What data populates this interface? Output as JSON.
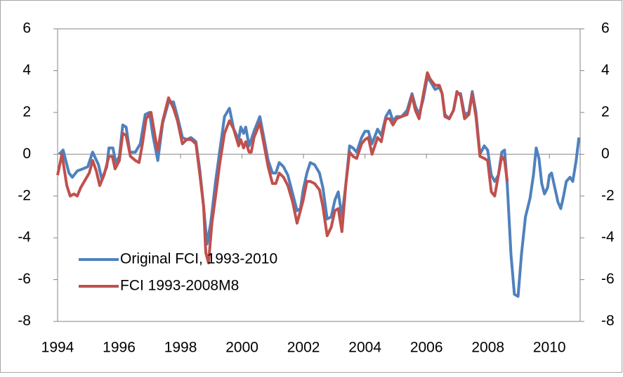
{
  "chart_data": {
    "type": "line",
    "xlim": [
      1994,
      2011
    ],
    "xticks": [
      1994,
      1996,
      1998,
      2000,
      2002,
      2004,
      2006,
      2008,
      2010
    ],
    "ylim": [
      -8,
      6
    ],
    "yticks": [
      -8,
      -6,
      -4,
      -2,
      0,
      2,
      4,
      6
    ],
    "y2lim": [
      -8,
      6
    ],
    "y2ticks": [
      -8,
      -6,
      -4,
      -2,
      0,
      2,
      4,
      6
    ],
    "legend": "lower left",
    "series": [
      {
        "name": "Original FCI, 1993-2010",
        "color": "#4f81bd",
        "x": [
          1994.05,
          1994.18,
          1994.37,
          1994.48,
          1994.64,
          1994.82,
          1994.98,
          1995.14,
          1995.33,
          1995.44,
          1995.6,
          1995.67,
          1995.8,
          1995.89,
          1996.01,
          1996.12,
          1996.23,
          1996.35,
          1996.53,
          1996.69,
          1996.85,
          1996.99,
          1997.1,
          1997.26,
          1997.42,
          1997.61,
          1997.77,
          1997.9,
          1998.06,
          1998.2,
          1998.34,
          1998.5,
          1998.63,
          1998.75,
          1998.86,
          1998.98,
          1999.14,
          1999.27,
          1999.43,
          1999.59,
          1999.73,
          1999.89,
          1999.96,
          2000.05,
          2000.12,
          2000.23,
          2000.39,
          2000.58,
          2000.71,
          2000.85,
          2000.99,
          2001.1,
          2001.21,
          2001.35,
          2001.49,
          2001.65,
          2001.79,
          2001.9,
          2001.99,
          2002.11,
          2002.22,
          2002.36,
          2002.52,
          2002.63,
          2002.77,
          2002.9,
          2003.02,
          2003.13,
          2003.25,
          2003.38,
          2003.5,
          2003.61,
          2003.73,
          2003.89,
          2004.0,
          2004.11,
          2004.23,
          2004.41,
          2004.53,
          2004.68,
          2004.8,
          2004.91,
          2005.03,
          2005.19,
          2005.37,
          2005.53,
          2005.64,
          2005.76,
          2005.89,
          2006.03,
          2006.12,
          2006.28,
          2006.42,
          2006.51,
          2006.6,
          2006.74,
          2006.88,
          2006.99,
          2007.11,
          2007.24,
          2007.38,
          2007.49,
          2007.61,
          2007.74,
          2007.88,
          2007.99,
          2008.11,
          2008.22,
          2008.34,
          2008.45,
          2008.54,
          2008.63,
          2008.75,
          2008.86,
          2008.98,
          2009.09,
          2009.22,
          2009.37,
          2009.48,
          2009.57,
          2009.66,
          2009.75,
          2009.84,
          2009.94,
          2010.0,
          2010.07,
          2010.16,
          2010.28,
          2010.37,
          2010.46,
          2010.55,
          2010.67,
          2010.76,
          2010.87,
          2010.96
        ],
        "values": [
          0.0,
          0.2,
          -0.9,
          -1.1,
          -0.8,
          -0.7,
          -0.6,
          0.1,
          -0.5,
          -1.2,
          -0.6,
          0.3,
          0.3,
          -0.4,
          -0.1,
          1.4,
          1.3,
          0.1,
          0.1,
          0.5,
          1.9,
          2.0,
          0.9,
          -0.3,
          1.5,
          2.5,
          2.5,
          1.8,
          0.8,
          0.7,
          0.8,
          0.6,
          -0.8,
          -2.5,
          -4.3,
          -3.3,
          -1.3,
          0.1,
          1.8,
          2.2,
          1.2,
          0.7,
          1.3,
          1.0,
          1.3,
          0.4,
          1.1,
          1.8,
          0.8,
          -0.3,
          -0.9,
          -0.9,
          -0.4,
          -0.6,
          -1.0,
          -1.9,
          -2.7,
          -2.6,
          -1.7,
          -0.9,
          -0.4,
          -0.5,
          -0.9,
          -1.6,
          -3.1,
          -3.0,
          -2.2,
          -1.8,
          -3.0,
          -1.4,
          0.4,
          0.3,
          0.1,
          0.8,
          1.1,
          1.1,
          0.5,
          1.2,
          0.9,
          1.8,
          2.1,
          1.6,
          1.8,
          1.8,
          2.1,
          2.9,
          2.3,
          1.9,
          2.6,
          3.7,
          3.5,
          3.1,
          3.2,
          2.9,
          1.9,
          1.7,
          2.1,
          2.9,
          2.9,
          1.9,
          2.0,
          3.0,
          2.0,
          0.0,
          0.4,
          0.2,
          -1.0,
          -1.3,
          -1.0,
          0.1,
          0.2,
          -1.5,
          -4.8,
          -6.7,
          -6.8,
          -4.8,
          -3.0,
          -2.1,
          -1.0,
          0.3,
          -0.2,
          -1.4,
          -1.9,
          -1.6,
          -1.0,
          -0.9,
          -1.5,
          -2.3,
          -2.6,
          -2.0,
          -1.3,
          -1.1,
          -1.3,
          -0.3,
          0.8
        ]
      },
      {
        "name": "FCI 1993-2008M8",
        "color": "#c0504d",
        "x": [
          1994.0,
          1994.14,
          1994.3,
          1994.41,
          1994.53,
          1994.64,
          1994.75,
          1994.91,
          1995.03,
          1995.14,
          1995.26,
          1995.37,
          1995.51,
          1995.67,
          1995.78,
          1995.87,
          1996.01,
          1996.12,
          1996.23,
          1996.37,
          1996.53,
          1996.65,
          1996.76,
          1996.88,
          1997.04,
          1997.2,
          1997.26,
          1997.42,
          1997.61,
          1997.77,
          1997.9,
          1998.06,
          1998.2,
          1998.34,
          1998.5,
          1998.63,
          1998.75,
          1998.82,
          1998.91,
          1999.02,
          1999.14,
          1999.27,
          1999.43,
          1999.59,
          1999.73,
          1999.89,
          1999.96,
          2000.05,
          2000.12,
          2000.23,
          2000.3,
          2000.39,
          2000.58,
          2000.71,
          2000.85,
          2000.99,
          2001.1,
          2001.21,
          2001.35,
          2001.49,
          2001.65,
          2001.79,
          2001.9,
          2001.99,
          2002.11,
          2002.22,
          2002.36,
          2002.52,
          2002.63,
          2002.77,
          2002.9,
          2003.02,
          2003.13,
          2003.25,
          2003.38,
          2003.5,
          2003.61,
          2003.73,
          2003.89,
          2004.0,
          2004.11,
          2004.23,
          2004.41,
          2004.53,
          2004.68,
          2004.8,
          2004.91,
          2005.03,
          2005.19,
          2005.37,
          2005.53,
          2005.64,
          2005.76,
          2005.89,
          2006.03,
          2006.12,
          2006.28,
          2006.42,
          2006.51,
          2006.6,
          2006.74,
          2006.88,
          2006.99,
          2007.11,
          2007.24,
          2007.38,
          2007.49,
          2007.61,
          2007.74,
          2007.88,
          2007.99,
          2008.11,
          2008.22,
          2008.34,
          2008.45,
          2008.54,
          2008.63
        ],
        "values": [
          -1.0,
          0.0,
          -1.5,
          -2.0,
          -1.9,
          -2.0,
          -1.6,
          -1.2,
          -0.9,
          -0.3,
          -0.8,
          -1.5,
          -1.0,
          -0.1,
          -0.1,
          -0.7,
          -0.3,
          1.0,
          0.9,
          -0.1,
          -0.3,
          -0.4,
          0.5,
          1.7,
          2.0,
          0.6,
          0.2,
          1.6,
          2.7,
          2.2,
          1.6,
          0.5,
          0.7,
          0.7,
          0.5,
          -1.0,
          -2.5,
          -4.7,
          -5.2,
          -3.3,
          -2.0,
          -0.5,
          1.0,
          1.6,
          1.2,
          0.4,
          0.7,
          0.3,
          0.6,
          0.1,
          0.1,
          0.8,
          1.5,
          0.5,
          -0.6,
          -1.4,
          -1.4,
          -0.9,
          -1.1,
          -1.5,
          -2.3,
          -3.3,
          -2.7,
          -2.2,
          -1.3,
          -1.3,
          -1.4,
          -1.7,
          -2.5,
          -3.9,
          -3.5,
          -2.7,
          -2.6,
          -3.7,
          -1.4,
          0.1,
          -0.1,
          -0.2,
          0.5,
          0.7,
          0.8,
          0.0,
          0.8,
          0.6,
          1.7,
          1.7,
          1.4,
          1.7,
          1.8,
          1.9,
          2.8,
          2.1,
          1.7,
          2.8,
          3.9,
          3.6,
          3.3,
          3.3,
          2.9,
          1.8,
          1.7,
          2.1,
          3.0,
          2.8,
          1.7,
          1.9,
          2.9,
          1.8,
          -0.1,
          -0.2,
          -0.3,
          -1.8,
          -2.0,
          -1.0,
          -0.1,
          -0.3,
          -1.3
        ]
      }
    ]
  }
}
